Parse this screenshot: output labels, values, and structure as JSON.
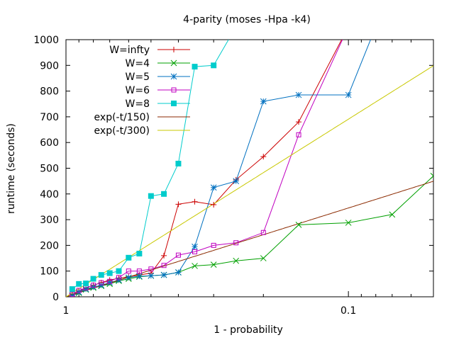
{
  "chart_data": {
    "type": "line",
    "title": "4-parity (moses -Hpa -k4)",
    "xlabel": "1 - probability",
    "ylabel": "runtime (seconds)",
    "xscale": "log-reversed",
    "xlim": [
      1,
      0.05
    ],
    "ylim": [
      0,
      1000
    ],
    "xticks": [
      {
        "value": 1,
        "label": "1"
      },
      {
        "value": 0.1,
        "label": "0.1"
      }
    ],
    "yticks": [
      0,
      100,
      200,
      300,
      400,
      500,
      600,
      700,
      800,
      900,
      1000
    ],
    "legend_position": "top-left",
    "series": [
      {
        "name": "W=infty",
        "color": "#cc0000",
        "marker": "plus",
        "x": [
          0.95,
          0.9,
          0.85,
          0.8,
          0.75,
          0.7,
          0.65,
          0.6,
          0.55,
          0.5,
          0.45,
          0.4,
          0.35,
          0.3,
          0.25,
          0.2,
          0.15,
          0.1
        ],
        "y": [
          10,
          20,
          35,
          45,
          55,
          65,
          72,
          78,
          85,
          92,
          160,
          360,
          370,
          358,
          455,
          545,
          680,
          1050
        ]
      },
      {
        "name": "W=4",
        "color": "#00a000",
        "marker": "x",
        "x": [
          0.95,
          0.9,
          0.85,
          0.8,
          0.75,
          0.7,
          0.65,
          0.6,
          0.55,
          0.5,
          0.45,
          0.4,
          0.35,
          0.3,
          0.25,
          0.2,
          0.15,
          0.1,
          0.07,
          0.05
        ],
        "y": [
          5,
          15,
          28,
          35,
          42,
          50,
          62,
          70,
          78,
          82,
          85,
          95,
          120,
          125,
          140,
          150,
          280,
          288,
          320,
          470
        ]
      },
      {
        "name": "W=5",
        "color": "#0070c0",
        "marker": "star",
        "x": [
          0.95,
          0.9,
          0.85,
          0.8,
          0.75,
          0.7,
          0.65,
          0.6,
          0.55,
          0.5,
          0.45,
          0.4,
          0.35,
          0.3,
          0.25,
          0.2,
          0.15,
          0.1,
          0.08
        ],
        "y": [
          3,
          18,
          30,
          38,
          45,
          55,
          65,
          75,
          80,
          82,
          85,
          95,
          195,
          425,
          450,
          760,
          785,
          785,
          1050
        ]
      },
      {
        "name": "W=6",
        "color": "#c000c0",
        "marker": "box",
        "x": [
          0.95,
          0.9,
          0.85,
          0.8,
          0.75,
          0.7,
          0.65,
          0.6,
          0.55,
          0.5,
          0.45,
          0.4,
          0.35,
          0.3,
          0.25,
          0.2,
          0.15,
          0.1
        ],
        "y": [
          10,
          25,
          35,
          45,
          55,
          60,
          75,
          100,
          100,
          108,
          122,
          162,
          175,
          200,
          210,
          250,
          630,
          1050
        ]
      },
      {
        "name": "W=8",
        "color": "#00cccc",
        "marker": "filled-box",
        "x": [
          0.95,
          0.9,
          0.85,
          0.8,
          0.75,
          0.7,
          0.65,
          0.6,
          0.55,
          0.5,
          0.45,
          0.4,
          0.35,
          0.3,
          0.25
        ],
        "y": [
          30,
          50,
          52,
          70,
          85,
          92,
          100,
          152,
          168,
          392,
          400,
          518,
          895,
          900,
          1050
        ]
      },
      {
        "name": "exp(-t/150)",
        "color": "#8b2a00",
        "function": "-150*ln(x)"
      },
      {
        "name": "exp(-t/300)",
        "color": "#c8c800",
        "function": "-300*ln(x)"
      }
    ]
  }
}
